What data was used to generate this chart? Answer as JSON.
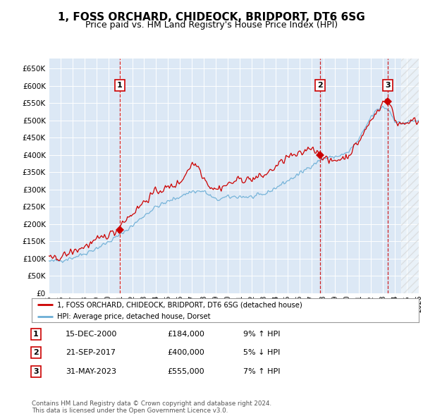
{
  "title": "1, FOSS ORCHARD, CHIDEOCK, BRIDPORT, DT6 6SG",
  "subtitle": "Price paid vs. HM Land Registry's House Price Index (HPI)",
  "ylim": [
    0,
    680000
  ],
  "yticks": [
    0,
    50000,
    100000,
    150000,
    200000,
    250000,
    300000,
    350000,
    400000,
    450000,
    500000,
    550000,
    600000,
    650000
  ],
  "xlim_start": 1995.0,
  "xlim_end": 2026.0,
  "hpi_color": "#6baed6",
  "price_color": "#cc0000",
  "sale_marker_color": "#cc0000",
  "dashed_line_color": "#cc0000",
  "background_color": "#dce8f5",
  "sales": [
    {
      "year": 2000.96,
      "price": 184000,
      "label": "1"
    },
    {
      "year": 2017.72,
      "price": 400000,
      "label": "2"
    },
    {
      "year": 2023.41,
      "price": 555000,
      "label": "3"
    }
  ],
  "table_entries": [
    {
      "num": "1",
      "date": "15-DEC-2000",
      "price": "£184,000",
      "pct": "9%",
      "dir": "↑",
      "hpi": "HPI"
    },
    {
      "num": "2",
      "date": "21-SEP-2017",
      "price": "£400,000",
      "pct": "5%",
      "dir": "↓",
      "hpi": "HPI"
    },
    {
      "num": "3",
      "date": "31-MAY-2023",
      "price": "£555,000",
      "pct": "7%",
      "dir": "↑",
      "hpi": "HPI"
    }
  ],
  "legend_entries": [
    {
      "color": "#cc0000",
      "label": "1, FOSS ORCHARD, CHIDEOCK, BRIDPORT, DT6 6SG (detached house)"
    },
    {
      "color": "#6baed6",
      "label": "HPI: Average price, detached house, Dorset"
    }
  ],
  "footnote": "Contains HM Land Registry data © Crown copyright and database right 2024.\nThis data is licensed under the Open Government Licence v3.0.",
  "hatched_region_start": 2024.5,
  "title_fontsize": 11,
  "subtitle_fontsize": 9
}
